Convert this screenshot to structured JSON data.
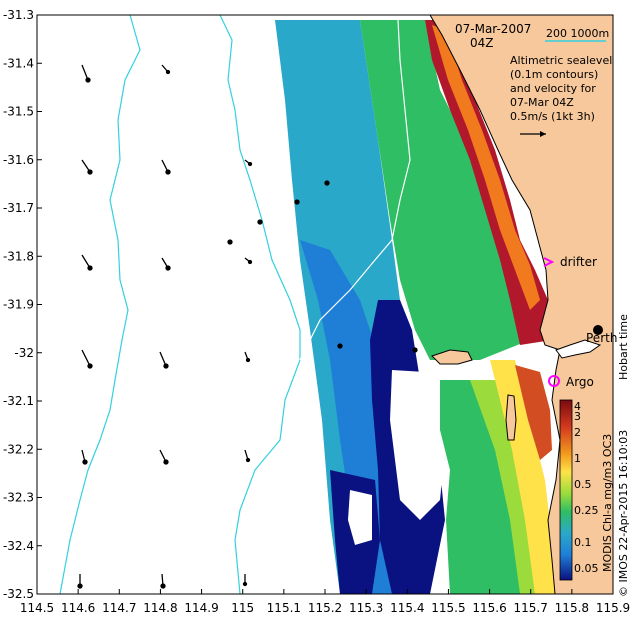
{
  "header": {
    "date": "07-Mar-2007",
    "time": "04Z",
    "isobath_legend": "200  1000m",
    "sealevel_text": [
      "Altimetric sealevel",
      "(0.1m contours)",
      "and velocity for",
      "07-Mar 04Z",
      "0.5m/s (1kt 3h)"
    ]
  },
  "labels": {
    "drifter": "drifter",
    "argo": "Argo",
    "perth": "Perth",
    "hobart_time": "Hobart time",
    "colorbar_title": "MODIS Chl-a mg/m3 OC3",
    "credit": "© IMOS 22-Apr-2015 16:10:03"
  },
  "axes": {
    "lon_range": [
      114.5,
      115.9
    ],
    "lat_range": [
      -32.5,
      -31.3
    ],
    "lon_ticks": [
      "114.5",
      "114.6",
      "114.7",
      "114.8",
      "114.9",
      "115",
      "115.1",
      "115.2",
      "115.3",
      "115.4",
      "115.5",
      "115.6",
      "115.7",
      "115.8",
      "115.9"
    ],
    "lat_ticks": [
      "-31.3",
      "-31.4",
      "-31.5",
      "-31.6",
      "-31.7",
      "-31.8",
      "-31.9",
      "-32",
      "-32.1",
      "-32.2",
      "-32.3",
      "-32.4",
      "-32.5"
    ]
  },
  "colorbar": {
    "tick_labels": [
      "4",
      "3",
      "2",
      "1",
      "0.5",
      "0.25",
      "0.1",
      "0.05"
    ]
  },
  "colors": {
    "land": "#f7c89b",
    "isobath": "#33d0e0",
    "chl_high": "#b2182b",
    "chl_mid": "#ffe24a",
    "chl_green": "#2fbe63",
    "chl_teal": "#2aa8c9",
    "chl_blue": "#1f7fd6",
    "chl_low": "#0a1180",
    "marker": "#ff00ff"
  }
}
